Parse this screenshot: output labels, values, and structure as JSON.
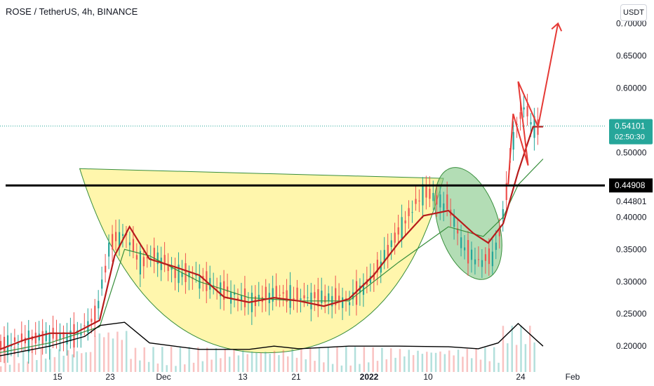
{
  "header": {
    "title": "ROSE / TetherUS, 4h, BINANCE",
    "unit": "USDT"
  },
  "colors": {
    "up": "#26a69a",
    "down": "#ef5350",
    "ma_fast": "#b71c1c",
    "ma_slow": "#388e3c",
    "cup_fill": "#fff59d",
    "oval_fill": "#81c784",
    "arrow": "#e53935",
    "resistance": "#000000",
    "price_badge": "#26a69a"
  },
  "chart_data": {
    "type": "candlestick",
    "ylim": [
      0.16,
      0.72
    ],
    "y_ticks": [
      "0.70000",
      "0.65000",
      "0.60000",
      "0.50000",
      "0.40000",
      "0.35000",
      "0.30000",
      "0.25000",
      "0.20000"
    ],
    "x_ticks": [
      "15",
      "23",
      "Dec",
      "13",
      "21",
      "2022",
      "10",
      "24",
      "Feb"
    ],
    "current_price": {
      "value": "0.54101",
      "countdown": "02:50:30"
    },
    "level_label": "0.44908",
    "level_value": 0.449,
    "extra_label": "0.44801",
    "price_path": [
      [
        0,
        0.2
      ],
      [
        5,
        0.21
      ],
      [
        10,
        0.215
      ],
      [
        15,
        0.215
      ],
      [
        19,
        0.245
      ],
      [
        22,
        0.36
      ],
      [
        25,
        0.375
      ],
      [
        28,
        0.33
      ],
      [
        31,
        0.34
      ],
      [
        35,
        0.315
      ],
      [
        40,
        0.305
      ],
      [
        45,
        0.285
      ],
      [
        50,
        0.268
      ],
      [
        55,
        0.282
      ],
      [
        60,
        0.275
      ],
      [
        65,
        0.275
      ],
      [
        70,
        0.27
      ],
      [
        75,
        0.31
      ],
      [
        80,
        0.38
      ],
      [
        85,
        0.44
      ],
      [
        90,
        0.415
      ],
      [
        93,
        0.35
      ],
      [
        96,
        0.33
      ],
      [
        99,
        0.34
      ],
      [
        101,
        0.41
      ],
      [
        103,
        0.53
      ],
      [
        105,
        0.57
      ],
      [
        107,
        0.54
      ]
    ],
    "ma_fast": [
      [
        0,
        0.195
      ],
      [
        5,
        0.21
      ],
      [
        10,
        0.22
      ],
      [
        15,
        0.22
      ],
      [
        20,
        0.24
      ],
      [
        23,
        0.34
      ],
      [
        26,
        0.385
      ],
      [
        30,
        0.335
      ],
      [
        35,
        0.323
      ],
      [
        40,
        0.31
      ],
      [
        45,
        0.276
      ],
      [
        50,
        0.268
      ],
      [
        55,
        0.275
      ],
      [
        60,
        0.27
      ],
      [
        65,
        0.262
      ],
      [
        70,
        0.273
      ],
      [
        75,
        0.31
      ],
      [
        80,
        0.36
      ],
      [
        85,
        0.402
      ],
      [
        90,
        0.41
      ],
      [
        95,
        0.375
      ],
      [
        98,
        0.36
      ],
      [
        101,
        0.39
      ],
      [
        104,
        0.47
      ],
      [
        107,
        0.54
      ],
      [
        109,
        0.54
      ]
    ],
    "ma_slow": [
      [
        0,
        0.19
      ],
      [
        10,
        0.205
      ],
      [
        20,
        0.23
      ],
      [
        25,
        0.35
      ],
      [
        30,
        0.34
      ],
      [
        40,
        0.3
      ],
      [
        50,
        0.275
      ],
      [
        60,
        0.27
      ],
      [
        70,
        0.27
      ],
      [
        80,
        0.33
      ],
      [
        90,
        0.385
      ],
      [
        97,
        0.37
      ],
      [
        101,
        0.4
      ],
      [
        104,
        0.45
      ],
      [
        109,
        0.49
      ]
    ],
    "volume_envelope": [
      [
        0,
        0.185
      ],
      [
        10,
        0.2
      ],
      [
        17,
        0.215
      ],
      [
        20,
        0.232
      ],
      [
        25,
        0.237
      ],
      [
        30,
        0.205
      ],
      [
        40,
        0.195
      ],
      [
        50,
        0.195
      ],
      [
        55,
        0.2
      ],
      [
        60,
        0.196
      ],
      [
        70,
        0.2
      ],
      [
        80,
        0.2
      ],
      [
        90,
        0.199
      ],
      [
        96,
        0.196
      ],
      [
        100,
        0.205
      ],
      [
        104,
        0.235
      ],
      [
        109,
        0.2
      ]
    ],
    "annotations": {
      "cup": {
        "left": [
          16,
          0.475
        ],
        "right": [
          89,
          0.46
        ],
        "bottom": [
          55,
          0.19
        ]
      },
      "oval": {
        "center": [
          94,
          0.39
        ],
        "rx_days": 6,
        "ry": 0.09
      },
      "arrow": [
        [
          102,
          0.45
        ],
        [
          103,
          0.56
        ],
        [
          106,
          0.48
        ],
        [
          104,
          0.61
        ],
        [
          108,
          0.54
        ],
        [
          112,
          0.7
        ]
      ]
    }
  }
}
